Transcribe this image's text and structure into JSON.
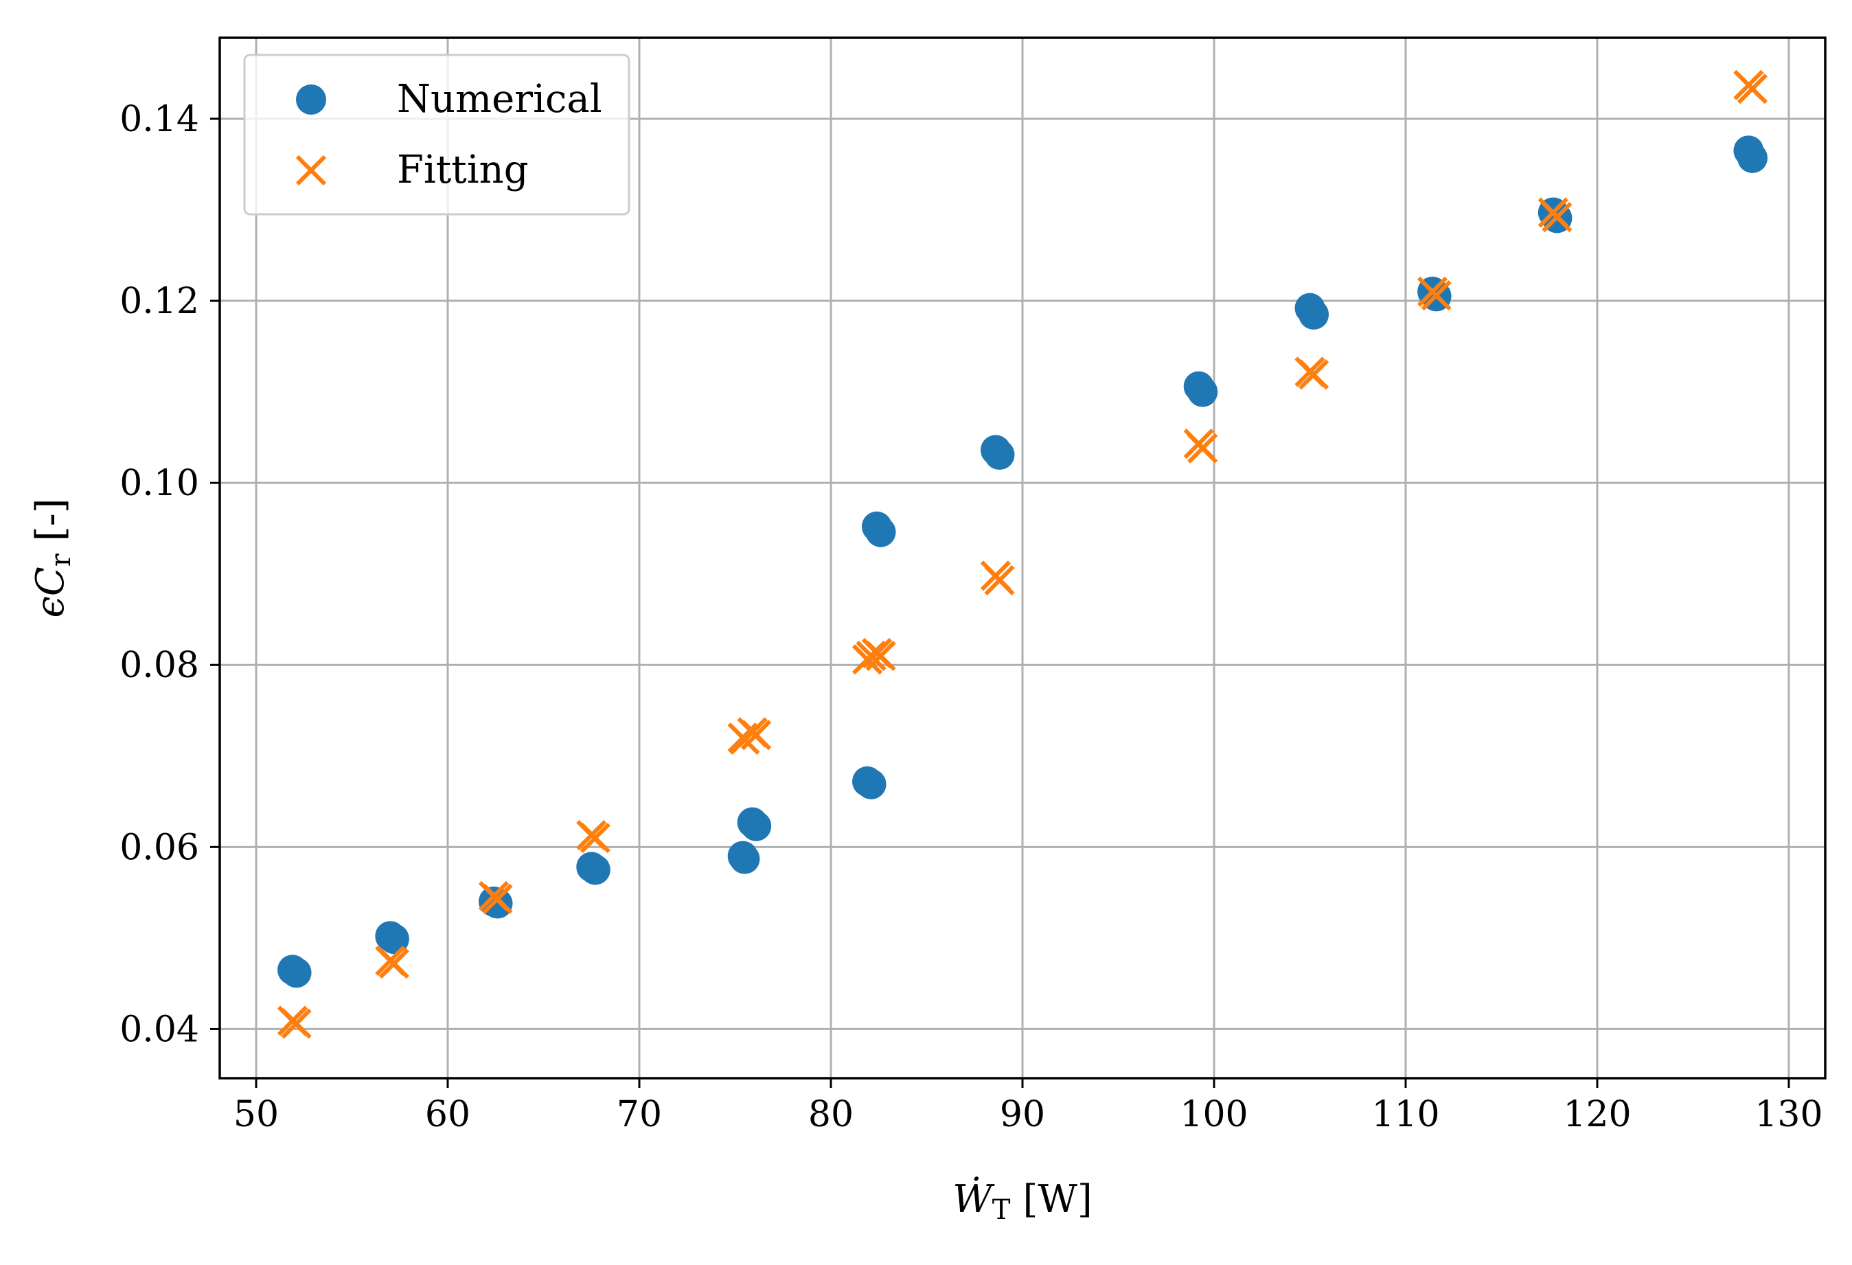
{
  "chart_data": {
    "type": "scatter",
    "title": "",
    "xlabel_main": "Ẇ",
    "xlabel_sub": "T",
    "xlabel_unit": "[W]",
    "ylabel_main": "ϵC",
    "ylabel_sub": "r",
    "ylabel_unit": "[-]",
    "xlim": [
      48.1,
      131.9
    ],
    "ylim": [
      0.0346,
      0.1489
    ],
    "xticks": [
      50,
      60,
      70,
      80,
      90,
      100,
      110,
      120,
      130
    ],
    "xtick_labels": [
      "50",
      "60",
      "70",
      "80",
      "90",
      "100",
      "110",
      "120",
      "130"
    ],
    "yticks": [
      0.04,
      0.06,
      0.08,
      0.1,
      0.12,
      0.14
    ],
    "ytick_labels": [
      "0.04",
      "0.06",
      "0.08",
      "0.10",
      "0.12",
      "0.14"
    ],
    "grid": true,
    "legend_position": "top-left",
    "series": [
      {
        "name": "Numerical",
        "marker": "circle",
        "color": "#1f77b4",
        "points": [
          [
            51.9,
            0.0465
          ],
          [
            52.1,
            0.0462
          ],
          [
            57.0,
            0.0502
          ],
          [
            57.2,
            0.0499
          ],
          [
            62.4,
            0.054
          ],
          [
            62.6,
            0.0538
          ],
          [
            67.5,
            0.0578
          ],
          [
            67.7,
            0.0575
          ],
          [
            75.4,
            0.059
          ],
          [
            75.5,
            0.0587
          ],
          [
            75.9,
            0.0627
          ],
          [
            76.1,
            0.0623
          ],
          [
            81.9,
            0.0672
          ],
          [
            82.1,
            0.0669
          ],
          [
            82.4,
            0.0952
          ],
          [
            82.6,
            0.0946
          ],
          [
            88.6,
            0.1036
          ],
          [
            88.8,
            0.1031
          ],
          [
            99.2,
            0.1106
          ],
          [
            99.4,
            0.11
          ],
          [
            105.0,
            0.1192
          ],
          [
            105.2,
            0.1185
          ],
          [
            111.4,
            0.121
          ],
          [
            111.6,
            0.1205
          ],
          [
            117.7,
            0.1297
          ],
          [
            117.9,
            0.1291
          ],
          [
            127.9,
            0.1365
          ],
          [
            128.1,
            0.1357
          ]
        ]
      },
      {
        "name": "Fitting",
        "marker": "x",
        "color": "#ff7f0e",
        "points": [
          [
            51.9,
            0.0409
          ],
          [
            52.1,
            0.0406
          ],
          [
            57.0,
            0.0475
          ],
          [
            57.2,
            0.0472
          ],
          [
            62.4,
            0.0546
          ],
          [
            62.6,
            0.0543
          ],
          [
            67.5,
            0.0613
          ],
          [
            67.7,
            0.061
          ],
          [
            75.4,
            0.072
          ],
          [
            75.5,
            0.0718
          ],
          [
            75.9,
            0.0726
          ],
          [
            76.1,
            0.0723
          ],
          [
            81.9,
            0.0806
          ],
          [
            82.1,
            0.081
          ],
          [
            82.4,
            0.0813
          ],
          [
            82.6,
            0.081
          ],
          [
            88.6,
            0.0898
          ],
          [
            88.8,
            0.0893
          ],
          [
            99.2,
            0.1043
          ],
          [
            99.4,
            0.1038
          ],
          [
            105.0,
            0.1122
          ],
          [
            105.2,
            0.1119
          ],
          [
            111.4,
            0.121
          ],
          [
            111.6,
            0.1206
          ],
          [
            117.7,
            0.1297
          ],
          [
            117.9,
            0.1292
          ],
          [
            127.9,
            0.1437
          ],
          [
            128.1,
            0.1433
          ]
        ]
      }
    ]
  }
}
